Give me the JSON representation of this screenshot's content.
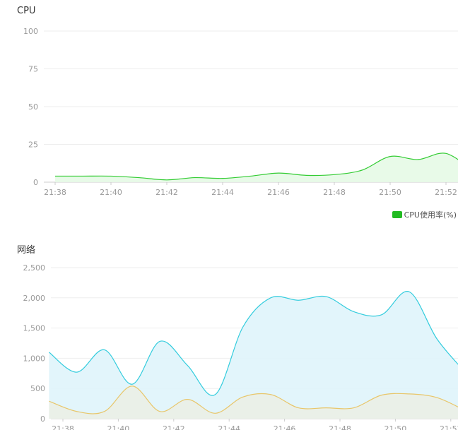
{
  "chart_data": [
    {
      "type": "area",
      "title": "CPU",
      "x": [
        "21:38",
        "21:39",
        "21:40",
        "21:41",
        "21:42",
        "21:43",
        "21:44",
        "21:45",
        "21:46",
        "21:47",
        "21:48",
        "21:49",
        "21:50",
        "21:51",
        "21:52",
        "21:53"
      ],
      "x_ticks": [
        "21:38",
        "21:40",
        "21:42",
        "21:44",
        "21:46",
        "21:48",
        "21:50",
        "21:52"
      ],
      "y_ticks": [
        "0",
        "25",
        "50",
        "75",
        "100"
      ],
      "ylim": [
        0,
        100
      ],
      "series": [
        {
          "name": "CPU使用率(%)",
          "color": "#33cc33",
          "fill": "#e6f9e6",
          "values": [
            4,
            4,
            4,
            3,
            1.5,
            3,
            2.5,
            4,
            6,
            4.5,
            5,
            8,
            17,
            15,
            19,
            7
          ]
        }
      ],
      "legend": "bottom-right",
      "grid": true
    },
    {
      "type": "area",
      "title": "网络",
      "x": [
        "21:37.5",
        "21:38.5",
        "21:39.5",
        "21:40.5",
        "21:41.5",
        "21:42.5",
        "21:43.5",
        "21:44.5",
        "21:45.5",
        "21:46.5",
        "21:47.5",
        "21:48.5",
        "21:49.5",
        "21:50.5",
        "21:51.5",
        "21:52.5"
      ],
      "x_ticks": [
        "21:38",
        "21:40",
        "21:42",
        "21:44",
        "21:46",
        "21:48",
        "21:50",
        "21:52"
      ],
      "y_ticks": [
        "0",
        "500",
        "1,000",
        "1,500",
        "2,000",
        "2,500"
      ],
      "ylim": [
        0,
        2500
      ],
      "series": [
        {
          "color": "#33ccdd",
          "fill": "#dff4fb",
          "values": [
            1100,
            770,
            1140,
            570,
            1280,
            880,
            400,
            1520,
            2000,
            1960,
            2020,
            1770,
            1720,
            2100,
            1320,
            780
          ]
        },
        {
          "color": "#e8c66a",
          "fill": "#ecefe3",
          "values": [
            290,
            120,
            120,
            540,
            120,
            320,
            90,
            360,
            400,
            180,
            180,
            180,
            390,
            410,
            350,
            140
          ]
        }
      ],
      "grid": true
    }
  ]
}
